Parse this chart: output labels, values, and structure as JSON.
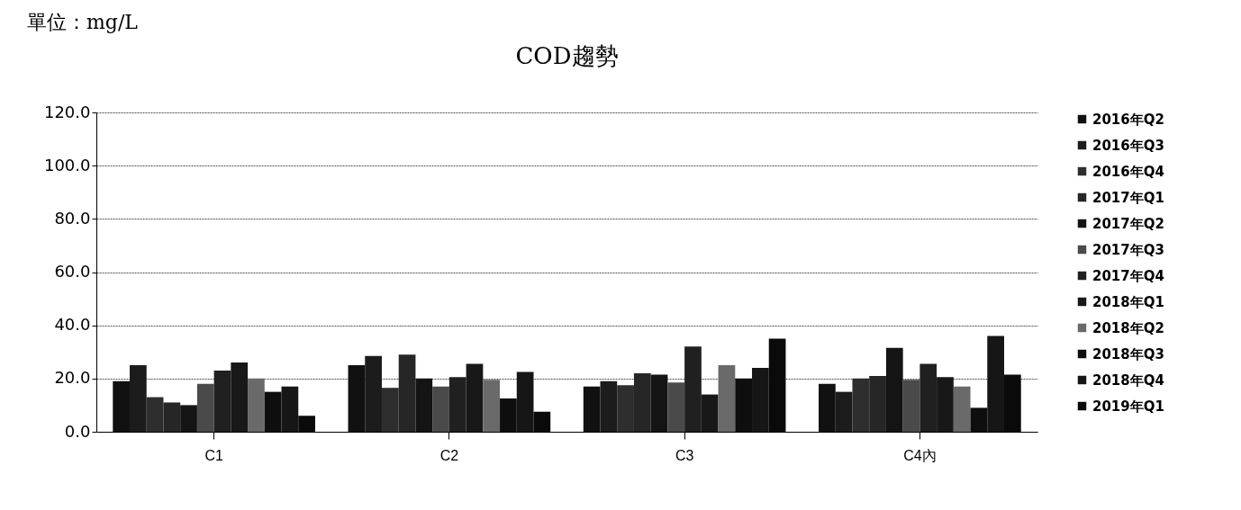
{
  "chart_data": {
    "type": "bar",
    "title": "COD趨勢",
    "annotations": [
      "單位：mg/L"
    ],
    "categories": [
      "C1",
      "C2",
      "C3",
      "C4內"
    ],
    "series": [
      {
        "name": "2016年Q2",
        "color": "#111111",
        "values": [
          19,
          25,
          17,
          18
        ]
      },
      {
        "name": "2016年Q3",
        "color": "#1c1c1c",
        "values": [
          25,
          28.5,
          19,
          15
        ]
      },
      {
        "name": "2016年Q4",
        "color": "#2e2e2e",
        "values": [
          13,
          16.5,
          17.5,
          20
        ]
      },
      {
        "name": "2017年Q1",
        "color": "#262626",
        "values": [
          11,
          29,
          22,
          21
        ]
      },
      {
        "name": "2017年Q2",
        "color": "#141414",
        "values": [
          10,
          20,
          21.5,
          31.5
        ]
      },
      {
        "name": "2017年Q3",
        "color": "#4a4a4a",
        "values": [
          18,
          17,
          18.5,
          19.5
        ]
      },
      {
        "name": "2017年Q4",
        "color": "#202020",
        "values": [
          23,
          20.5,
          32,
          25.5
        ]
      },
      {
        "name": "2018年Q1",
        "color": "#181818",
        "values": [
          26,
          25.5,
          14,
          20.5
        ]
      },
      {
        "name": "2018年Q2",
        "color": "#6a6a6a",
        "values": [
          20,
          19.5,
          25,
          17
        ]
      },
      {
        "name": "2018年Q3",
        "color": "#0e0e0e",
        "values": [
          15,
          12.5,
          20,
          9
        ]
      },
      {
        "name": "2018年Q4",
        "color": "#161616",
        "values": [
          17,
          22.5,
          24,
          36
        ]
      },
      {
        "name": "2019年Q1",
        "color": "#0a0a0a",
        "values": [
          6,
          7.5,
          35,
          21.5
        ]
      }
    ],
    "ylim": [
      0,
      120
    ],
    "yticks": [
      {
        "value": 0,
        "label": "0.0"
      },
      {
        "value": 20,
        "label": "20.0"
      },
      {
        "value": 40,
        "label": "40.0"
      },
      {
        "value": 60,
        "label": "60.0"
      },
      {
        "value": 80,
        "label": "80.0"
      },
      {
        "value": 100,
        "label": "100.0"
      },
      {
        "value": 120,
        "label": "120.0"
      }
    ],
    "grid": "y",
    "legend": "right"
  }
}
